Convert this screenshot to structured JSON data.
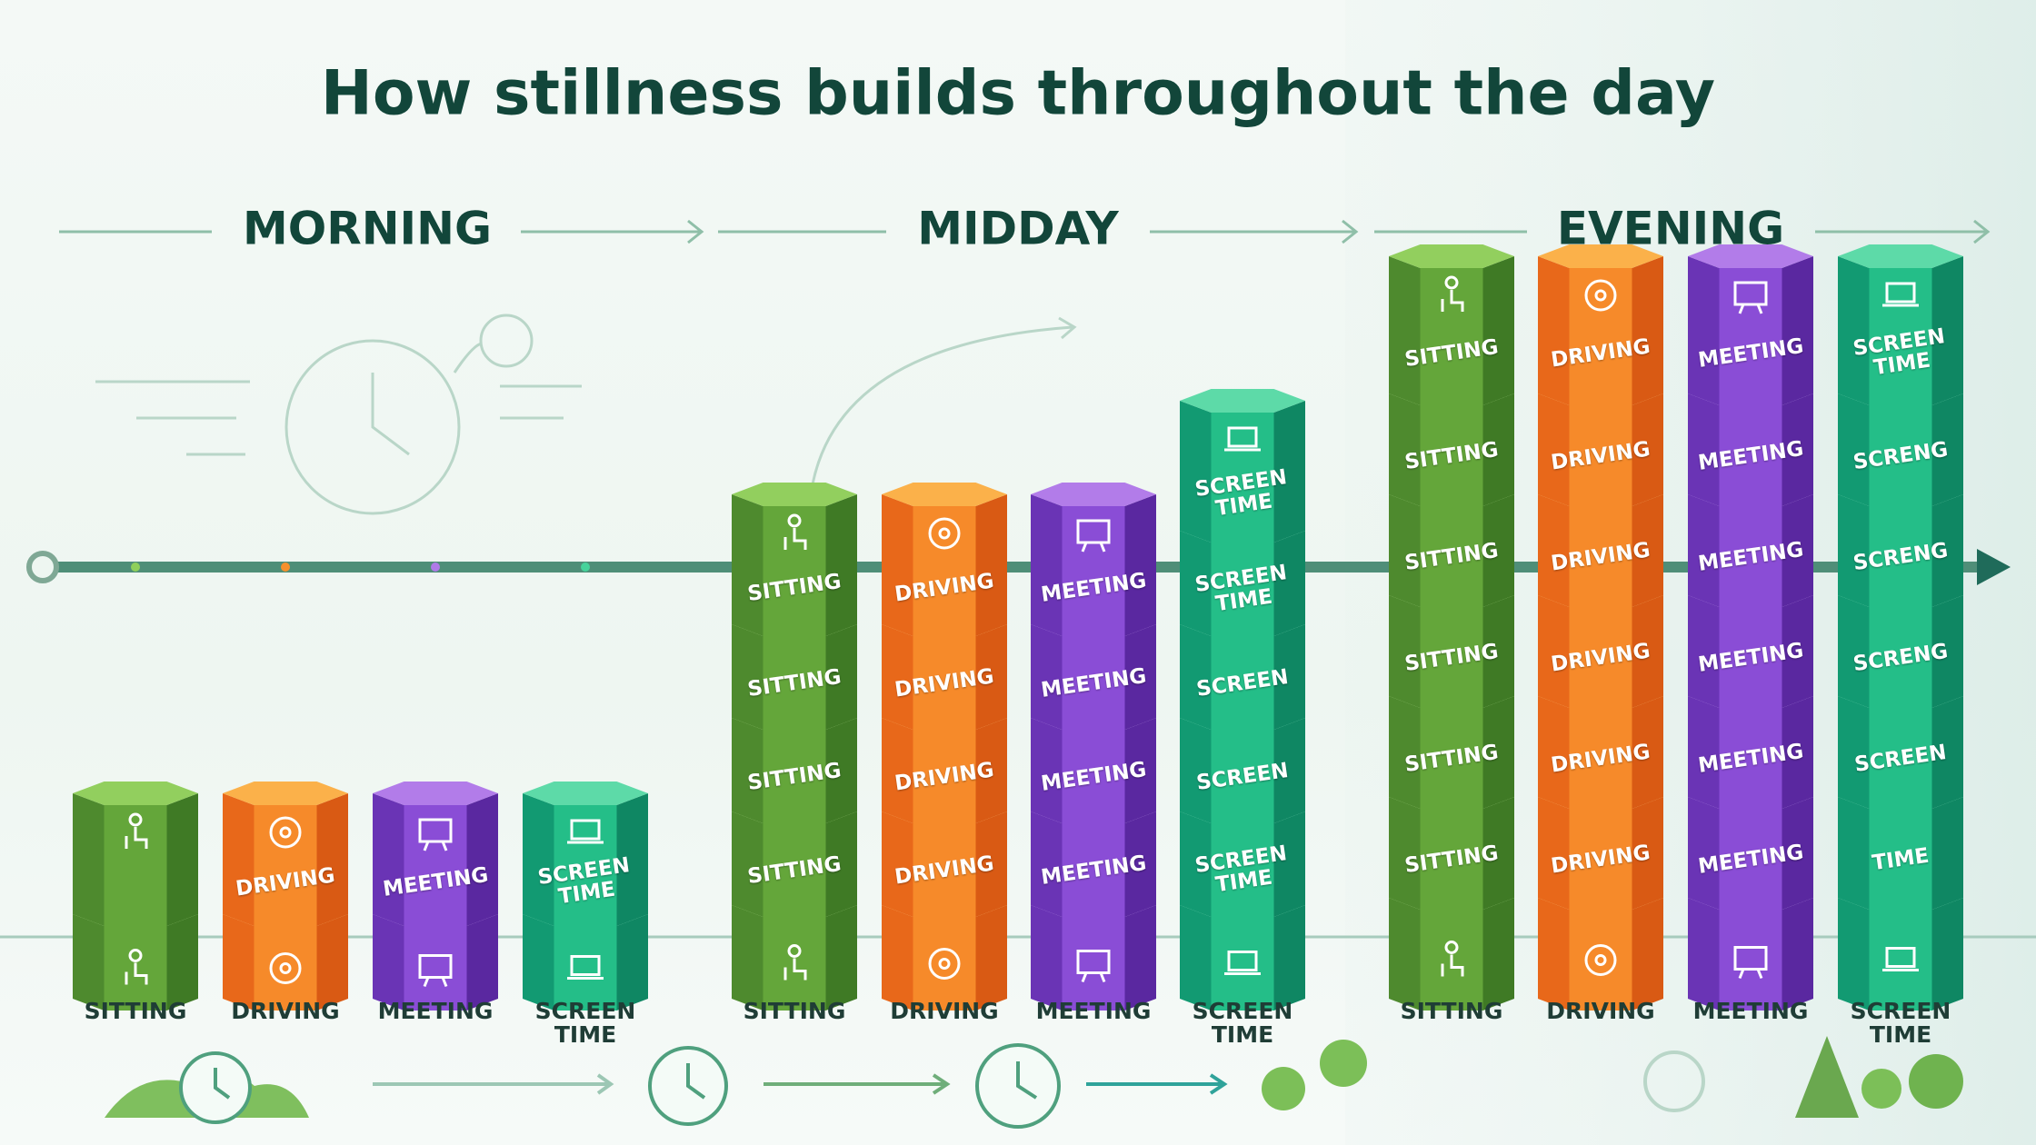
{
  "title": "How stillness builds throughout the day",
  "periods": [
    {
      "name": "MORNING",
      "columns": [
        {
          "label": "SITTING",
          "blocks": [
            null,
            null
          ]
        },
        {
          "label": "DRIVING",
          "blocks": [
            "DRIVING",
            null
          ]
        },
        {
          "label": "MEETING",
          "blocks": [
            "MEETING",
            null
          ]
        },
        {
          "label": "SCREEN TIME",
          "blocks": [
            "SCREEN TIME",
            null
          ]
        }
      ]
    },
    {
      "name": "MIDDAY",
      "columns": [
        {
          "label": "SITTING",
          "blocks": [
            "SITTING",
            "SITTING",
            "SITTING",
            "SITTING",
            null
          ]
        },
        {
          "label": "DRIVING",
          "blocks": [
            "DRIVING",
            "DRIVING",
            "DRIVING",
            "DRIVING",
            null
          ]
        },
        {
          "label": "MEETING",
          "blocks": [
            "MEETING",
            "MEETING",
            "MEETING",
            "MEETING",
            null
          ]
        },
        {
          "label": "SCREEN TIME",
          "blocks": [
            "SCREEN TIME",
            "SCREEN TIME",
            "SCREEN",
            "SCREEN",
            "SCREEN TIME",
            null
          ]
        }
      ]
    },
    {
      "name": "EVENING",
      "columns": [
        {
          "label": "SITTING",
          "blocks": [
            "SITTING",
            "SITTING",
            "SITTING",
            "SITTING",
            "SITTING",
            "SITTING",
            null
          ]
        },
        {
          "label": "DRIVING",
          "blocks": [
            "DRIVING",
            "DRIVING",
            "DRIVING",
            "DRIVING",
            "DRIVING",
            "DRIVING",
            null
          ]
        },
        {
          "label": "MEETING",
          "blocks": [
            "MEETING",
            "MEETING",
            "MEETING",
            "MEETING",
            "MEETING",
            "MEETING",
            null
          ]
        },
        {
          "label": "SCREEN TIME",
          "blocks": [
            "SCREEN TIME",
            "SCRENG",
            "SCRENG",
            "SCRENG",
            "SCREEN",
            "TIME",
            null
          ]
        }
      ]
    }
  ]
}
